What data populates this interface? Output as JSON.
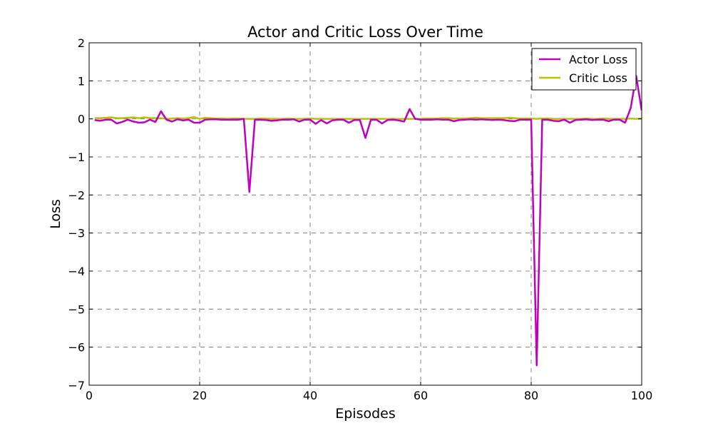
{
  "chart_data": {
    "type": "line",
    "title": "Actor and Critic Loss Over Time",
    "xlabel": "Episodes",
    "ylabel": "Loss",
    "xlim": [
      0,
      100
    ],
    "ylim": [
      -7,
      2
    ],
    "xticks": [
      0,
      20,
      40,
      60,
      80,
      100
    ],
    "yticks": [
      -7,
      -6,
      -5,
      -4,
      -3,
      -2,
      -1,
      0,
      1,
      2
    ],
    "grid": true,
    "legend_position": "top-right",
    "x": [
      1,
      2,
      3,
      4,
      5,
      6,
      7,
      8,
      9,
      10,
      11,
      12,
      13,
      14,
      15,
      16,
      17,
      18,
      19,
      20,
      21,
      22,
      23,
      24,
      25,
      26,
      27,
      28,
      29,
      30,
      31,
      32,
      33,
      34,
      35,
      36,
      37,
      38,
      39,
      40,
      41,
      42,
      43,
      44,
      45,
      46,
      47,
      48,
      49,
      50,
      51,
      52,
      53,
      54,
      55,
      56,
      57,
      58,
      59,
      60,
      61,
      62,
      63,
      64,
      65,
      66,
      67,
      68,
      69,
      70,
      71,
      72,
      73,
      74,
      75,
      76,
      77,
      78,
      79,
      80,
      81,
      82,
      83,
      84,
      85,
      86,
      87,
      88,
      89,
      90,
      91,
      92,
      93,
      94,
      95,
      96,
      97,
      98,
      99,
      100
    ],
    "series": [
      {
        "name": "Actor Loss",
        "color": "#bf00bf",
        "values": [
          -0.03,
          -0.05,
          -0.02,
          -0.02,
          -0.12,
          -0.08,
          -0.02,
          -0.07,
          -0.1,
          -0.09,
          -0.02,
          -0.08,
          0.2,
          -0.02,
          -0.07,
          -0.01,
          -0.04,
          -0.02,
          -0.1,
          -0.1,
          -0.02,
          -0.01,
          -0.01,
          -0.02,
          -0.02,
          -0.02,
          -0.02,
          0.0,
          -1.92,
          -0.02,
          -0.02,
          -0.03,
          -0.05,
          -0.04,
          -0.02,
          -0.02,
          -0.01,
          -0.07,
          -0.02,
          -0.02,
          -0.13,
          -0.03,
          -0.12,
          -0.04,
          -0.02,
          -0.02,
          -0.1,
          -0.03,
          -0.03,
          -0.5,
          -0.02,
          -0.02,
          -0.12,
          -0.03,
          -0.02,
          -0.04,
          -0.07,
          0.26,
          0.0,
          -0.02,
          -0.02,
          -0.02,
          -0.01,
          -0.02,
          -0.02,
          -0.06,
          -0.03,
          -0.02,
          -0.01,
          -0.02,
          -0.01,
          -0.02,
          -0.03,
          -0.02,
          -0.03,
          -0.05,
          -0.06,
          -0.02,
          -0.02,
          -0.02,
          -6.48,
          -0.02,
          -0.02,
          -0.05,
          -0.06,
          -0.02,
          -0.1,
          -0.03,
          -0.02,
          -0.01,
          -0.03,
          -0.02,
          -0.02,
          -0.06,
          -0.02,
          -0.02,
          -0.1,
          0.28,
          1.13,
          0.22
        ]
      },
      {
        "name": "Critic Loss",
        "color": "#bfbf00",
        "values": [
          0.02,
          0.02,
          0.03,
          0.04,
          0.02,
          0.02,
          0.03,
          0.04,
          0.02,
          0.04,
          0.02,
          0.02,
          0.02,
          0.0,
          0.01,
          0.02,
          0.01,
          0.02,
          0.05,
          0.0,
          0.03,
          0.02,
          0.01,
          0.01,
          0.0,
          0.01,
          0.01,
          0.0,
          0.0,
          0.0,
          0.01,
          0.01,
          0.0,
          0.0,
          0.0,
          0.01,
          0.0,
          0.0,
          0.0,
          0.01,
          0.0,
          0.0,
          0.0,
          0.0,
          0.0,
          0.0,
          0.0,
          0.0,
          0.0,
          0.0,
          0.0,
          0.0,
          0.0,
          0.0,
          0.0,
          0.0,
          0.0,
          0.0,
          0.0,
          0.0,
          0.01,
          0.01,
          0.01,
          0.02,
          0.02,
          0.01,
          0.01,
          0.01,
          0.02,
          0.03,
          0.02,
          0.02,
          0.02,
          0.02,
          0.02,
          0.03,
          0.02,
          0.01,
          0.01,
          0.01,
          0.0,
          0.01,
          0.01,
          0.0,
          0.0,
          0.0,
          0.0,
          0.0,
          0.0,
          0.01,
          0.0,
          0.0,
          0.01,
          0.0,
          0.0,
          0.0,
          0.0,
          0.01,
          0.0,
          0.01
        ]
      }
    ]
  }
}
